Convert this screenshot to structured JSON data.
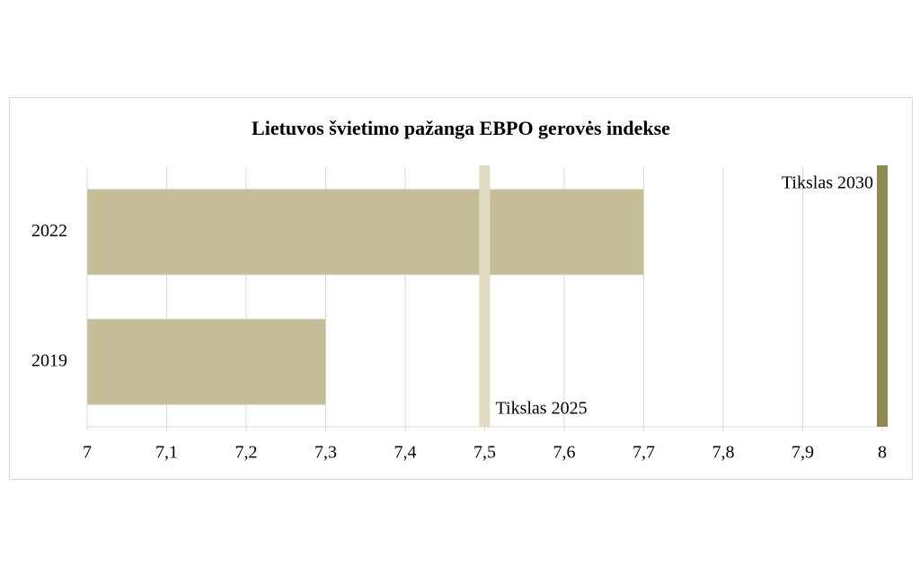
{
  "chart_data": {
    "type": "bar",
    "orientation": "horizontal",
    "title": "Lietuvos švietimo pažanga EBPO gerovės indekse",
    "categories": [
      "2022",
      "2019"
    ],
    "values": [
      7.7,
      7.3
    ],
    "color": "#c5bd98",
    "xlim": [
      7,
      8
    ],
    "xticks": [
      7,
      {
        "value": 7.1,
        "label": "7,1"
      },
      {
        "value": 7.2,
        "label": "7,2"
      },
      {
        "value": 7.3,
        "label": "7,3"
      },
      {
        "value": 7.4,
        "label": "7,4"
      },
      {
        "value": 7.5,
        "label": "7,5"
      },
      {
        "value": 7.6,
        "label": "7,6"
      },
      {
        "value": 7.7,
        "label": "7,7"
      },
      {
        "value": 7.8,
        "label": "7,8"
      },
      {
        "value": 7.9,
        "label": "7,9"
      },
      8
    ],
    "grid": true,
    "reference_lines": [
      {
        "label": "Tikslas 2025",
        "value": 7.5,
        "color": "#e0dbc2"
      },
      {
        "label": "Tikslas 2030",
        "value": 8,
        "color": "#8f8a55"
      }
    ]
  }
}
